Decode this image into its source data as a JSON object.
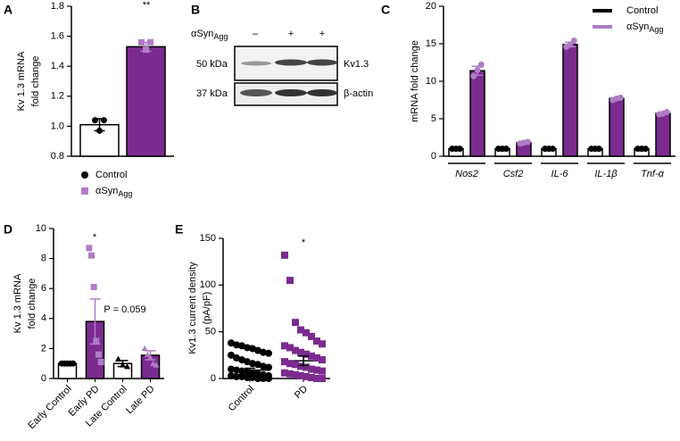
{
  "chart_data": [
    {
      "type": "bar",
      "panel": "A",
      "ylabel": [
        "Kv 1.3 mRNA",
        "fold change"
      ],
      "ylim": [
        0.8,
        1.8
      ],
      "yticks": [
        {
          "value": 0.8,
          "label": "0.8"
        },
        {
          "value": 1.0,
          "label": "1.0"
        },
        {
          "value": 1.2,
          "label": "1.2"
        },
        {
          "value": 1.4,
          "label": "1.4"
        },
        {
          "value": 1.6,
          "label": "1.6"
        },
        {
          "value": 1.8,
          "label": "1.8"
        }
      ],
      "legend": "bottom",
      "annotations": [
        "**"
      ],
      "series": [
        {
          "name": "Control",
          "color": "#ffffff",
          "point_color": "#000000",
          "marker": "circle",
          "values": [
            1.01
          ],
          "errors": [
            0.04
          ],
          "points": [
            [
              1.04,
              0.97,
              1.04
            ]
          ]
        },
        {
          "name": "αSyn",
          "name_sub": "Agg",
          "color": "#7b2b8f",
          "point_color": "#b07cc6",
          "marker": "square",
          "values": [
            1.53
          ],
          "errors": [
            0.03
          ],
          "points": [
            [
              1.56,
              1.51,
              1.56
            ]
          ]
        }
      ]
    },
    {
      "type": "bar",
      "panel": "C",
      "ylabel": [
        "mRNA fold change"
      ],
      "ylim": [
        0,
        20
      ],
      "yticks": [
        0,
        5,
        10,
        15,
        20
      ],
      "legend": "upper right",
      "categories": [
        "Nos2",
        "Csf2",
        "IL-6",
        "IL-1β",
        "Tnf-α"
      ],
      "series": [
        {
          "name": "Control",
          "color": "#ffffff",
          "point_color": "#000000",
          "marker": "circle",
          "values": [
            1,
            1,
            1,
            1,
            1
          ],
          "points": [
            [
              1,
              1,
              1
            ],
            [
              1,
              1,
              1
            ],
            [
              1,
              1,
              1
            ],
            [
              1,
              1,
              1
            ],
            [
              1,
              1,
              1
            ]
          ]
        },
        {
          "name": "αSyn",
          "name_sub": "Agg",
          "color": "#7b2b8f",
          "point_color": "#b07cc6",
          "marker": "circle",
          "values": [
            11.4,
            1.8,
            14.9,
            7.7,
            5.7
          ],
          "errors": [
            0.6,
            0.1,
            0.3,
            0.1,
            0.1
          ],
          "points": [
            [
              10.7,
              11.5,
              12.2
            ],
            [
              1.7,
              1.8,
              1.9
            ],
            [
              14.6,
              14.9,
              15.4
            ],
            [
              7.5,
              7.7,
              7.8
            ],
            [
              5.6,
              5.7,
              5.9
            ]
          ]
        }
      ]
    },
    {
      "type": "bar",
      "panel": "D",
      "ylabel": [
        "Kv 1.3 mRNA",
        "fold change"
      ],
      "ylim": [
        0,
        10
      ],
      "yticks": [
        0,
        2,
        4,
        6,
        8,
        10
      ],
      "categories": [
        "Early Control",
        "Early PD",
        "Late Control",
        "Late PD"
      ],
      "annotations": [
        "*",
        "P = 0.059"
      ],
      "series": [
        {
          "color": [
            "#ffffff",
            "#7b2b8f",
            "#ffffff",
            "#7b2b8f"
          ],
          "point_color": [
            "#000000",
            "#b07cc6",
            "#000000",
            "#b07cc6"
          ],
          "marker": [
            "circle",
            "square",
            "triangle",
            "triangle"
          ],
          "values": [
            1.0,
            3.8,
            1.0,
            1.55
          ],
          "errors": [
            0.05,
            1.5,
            0.2,
            0.3
          ],
          "points": [
            [
              1,
              1,
              1,
              1,
              1
            ],
            [
              8.7,
              8.2,
              6.1,
              2.5,
              1.6,
              1.1
            ],
            [
              1.3,
              0.9,
              0.8
            ],
            [
              2.0,
              1.6,
              1.4,
              1.0,
              0.9
            ]
          ]
        }
      ]
    },
    {
      "type": "strip",
      "panel": "E",
      "ylabel": [
        "Kv1.3 current density",
        "(pA/pF)"
      ],
      "ylim": [
        0,
        150
      ],
      "yticks": [
        0,
        50,
        100,
        150
      ],
      "categories": [
        "Control",
        "PD"
      ],
      "annotations": [
        "*"
      ],
      "series": [
        {
          "color": [
            "#000000",
            "#7b2b8f"
          ],
          "point_color": [
            "#000000",
            "#7b2b8f"
          ],
          "marker": [
            "circle",
            "square"
          ],
          "values": [
            9,
            19
          ],
          "errors": [
            2,
            5
          ],
          "points": [
            [
              38,
              36,
              35,
              33,
              32,
              30,
              28,
              27,
              25,
              22,
              20,
              18,
              16,
              15,
              13,
              12,
              10,
              9,
              8,
              7,
              6,
              5,
              4,
              3,
              3,
              2,
              2,
              1,
              1,
              0,
              0,
              0
            ],
            [
              132,
              105,
              60,
              52,
              49,
              45,
              40,
              37,
              35,
              33,
              30,
              28,
              26,
              24,
              22,
              20,
              18,
              16,
              15,
              13,
              12,
              10,
              9,
              8,
              6,
              5,
              4,
              3,
              2,
              1,
              0,
              0
            ]
          ]
        }
      ]
    }
  ],
  "blot": {
    "panel": "B",
    "treatment": "αSyn",
    "treatment_sub": "Agg",
    "lanes": [
      "–",
      "+",
      "+"
    ],
    "rows": [
      {
        "size": "50 kDa",
        "protein": "Kv1.3"
      },
      {
        "size": "37 kDa",
        "protein": "β-actin"
      }
    ]
  }
}
